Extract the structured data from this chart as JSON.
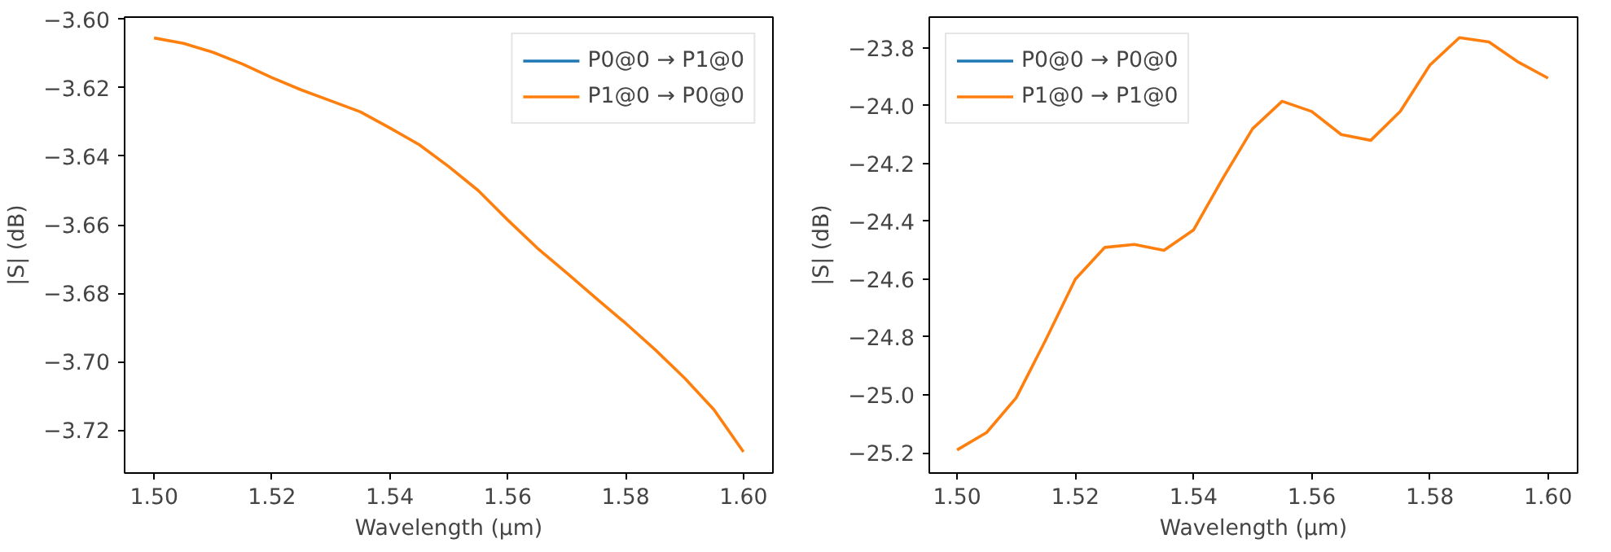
{
  "chart_data": [
    {
      "type": "line",
      "xlabel": "Wavelength (µm)",
      "ylabel": "|S| (dB)",
      "x": [
        1.5,
        1.505,
        1.51,
        1.515,
        1.52,
        1.525,
        1.53,
        1.535,
        1.54,
        1.545,
        1.55,
        1.555,
        1.56,
        1.565,
        1.57,
        1.575,
        1.58,
        1.585,
        1.59,
        1.595,
        1.6
      ],
      "series": [
        {
          "name": "P0@0 → P1@0",
          "color": "#1f77b4",
          "values": [
            null,
            null,
            null,
            null,
            null,
            null,
            null,
            null,
            null,
            null,
            null,
            null,
            null,
            null,
            null,
            null,
            null,
            null,
            null,
            null,
            null
          ]
        },
        {
          "name": "P1@0 → P0@0",
          "color": "#ff7f0e",
          "values": [
            -3.6054,
            -3.607,
            -3.6096,
            -3.613,
            -3.617,
            -3.6206,
            -3.6238,
            -3.627,
            -3.6317,
            -3.6366,
            -3.643,
            -3.65,
            -3.6586,
            -3.6668,
            -3.6741,
            -3.6815,
            -3.6888,
            -3.6965,
            -3.7048,
            -3.7141,
            -3.7264
          ]
        }
      ],
      "xlim": [
        1.495,
        1.605
      ],
      "ylim": [
        -3.7326,
        -3.5993
      ],
      "xticks": [
        {
          "value": 1.5,
          "label": "1.50"
        },
        {
          "value": 1.52,
          "label": "1.52"
        },
        {
          "value": 1.54,
          "label": "1.54"
        },
        {
          "value": 1.56,
          "label": "1.56"
        },
        {
          "value": 1.58,
          "label": "1.58"
        },
        {
          "value": 1.6,
          "label": "1.60"
        }
      ],
      "yticks": [
        {
          "value": -3.6,
          "label": "−3.60"
        },
        {
          "value": -3.62,
          "label": "−3.62"
        },
        {
          "value": -3.64,
          "label": "−3.64"
        },
        {
          "value": -3.66,
          "label": "−3.66"
        },
        {
          "value": -3.68,
          "label": "−3.68"
        },
        {
          "value": -3.7,
          "label": "−3.70"
        },
        {
          "value": -3.72,
          "label": "−3.72"
        }
      ],
      "grid": false,
      "legend": "top right",
      "line_style": "solid"
    },
    {
      "type": "line",
      "xlabel": "Wavelength (µm)",
      "ylabel": "|S| (dB)",
      "x": [
        1.5,
        1.505,
        1.51,
        1.515,
        1.52,
        1.525,
        1.53,
        1.535,
        1.54,
        1.545,
        1.55,
        1.555,
        1.56,
        1.565,
        1.57,
        1.575,
        1.58,
        1.585,
        1.59,
        1.595,
        1.6
      ],
      "series": [
        {
          "name": "P0@0 → P0@0",
          "color": "#1f77b4",
          "values": [
            null,
            null,
            null,
            null,
            null,
            null,
            null,
            null,
            null,
            null,
            null,
            null,
            null,
            null,
            null,
            null,
            null,
            null,
            null,
            null,
            null
          ]
        },
        {
          "name": "P1@0 → P1@0",
          "color": "#ff7f0e",
          "values": [
            -25.19,
            -25.13,
            -25.01,
            -24.81,
            -24.6,
            -24.49,
            -24.48,
            -24.5,
            -24.43,
            -24.25,
            -24.08,
            -23.985,
            -24.02,
            -24.1,
            -24.12,
            -24.02,
            -23.86,
            -23.765,
            -23.78,
            -23.85,
            -23.905
          ]
        }
      ],
      "xlim": [
        1.4953,
        1.605
      ],
      "ylim": [
        -25.27,
        -23.694
      ],
      "xticks": [
        {
          "value": 1.5,
          "label": "1.50"
        },
        {
          "value": 1.52,
          "label": "1.52"
        },
        {
          "value": 1.54,
          "label": "1.54"
        },
        {
          "value": 1.56,
          "label": "1.56"
        },
        {
          "value": 1.58,
          "label": "1.58"
        },
        {
          "value": 1.6,
          "label": "1.60"
        }
      ],
      "yticks": [
        {
          "value": -23.8,
          "label": "−23.8"
        },
        {
          "value": -24.0,
          "label": "−24.0"
        },
        {
          "value": -24.2,
          "label": "−24.2"
        },
        {
          "value": -24.4,
          "label": "−24.4"
        },
        {
          "value": -24.6,
          "label": "−24.6"
        },
        {
          "value": -24.8,
          "label": "−24.8"
        },
        {
          "value": -25.0,
          "label": "−25.0"
        },
        {
          "value": -25.2,
          "label": "−25.2"
        }
      ],
      "grid": false,
      "legend": "top left",
      "line_style": "solid"
    }
  ]
}
